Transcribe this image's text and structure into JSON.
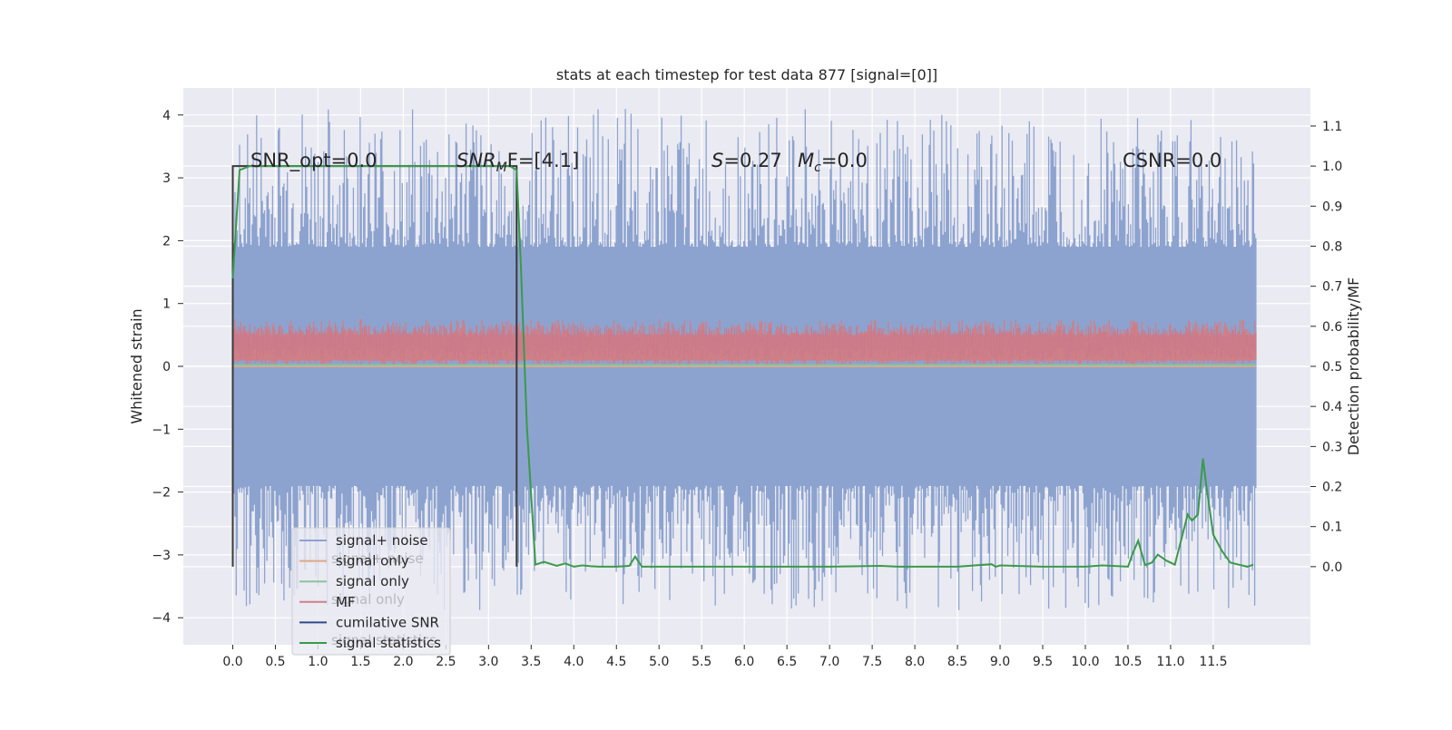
{
  "chart_data": {
    "type": "line",
    "title": "stats at each timestep for test data 877 [signal=[0]]",
    "ylabel_left": "Whitened strain",
    "ylabel_right": "Detection probability/MF",
    "xlim": [
      -0.58,
      12.64
    ],
    "ylim_left": [
      -4.43,
      4.43
    ],
    "ylim_right": [
      -0.195,
      1.195
    ],
    "x_ticks": [
      0.0,
      0.5,
      1.0,
      1.5,
      2.0,
      2.5,
      3.0,
      3.5,
      4.0,
      4.5,
      5.0,
      5.5,
      6.0,
      6.5,
      7.0,
      7.5,
      8.0,
      8.5,
      9.0,
      9.5,
      10.0,
      10.5,
      11.0,
      11.5
    ],
    "x_tick_labels": [
      "0.0",
      "0.5",
      "1.0",
      "1.5",
      "2.0",
      "2.5",
      "3.0",
      "3.5",
      "4.0",
      "4.5",
      "5.0",
      "5.5",
      "6.0",
      "6.5",
      "7.0",
      "7.5",
      "8.0",
      "8.5",
      "9.0",
      "9.5",
      "10.0",
      "10.5",
      "11.0",
      "11.5"
    ],
    "y_left_ticks": [
      -4,
      -3,
      -2,
      -1,
      0,
      1,
      2,
      3,
      4
    ],
    "y_left_tick_labels": [
      "−4",
      "−3",
      "−2",
      "−1",
      "0",
      "1",
      "2",
      "3",
      "4"
    ],
    "y_right_ticks": [
      0.0,
      0.1,
      0.2,
      0.3,
      0.4,
      0.5,
      0.6,
      0.7,
      0.8,
      0.9,
      1.0,
      1.1
    ],
    "y_right_tick_labels": [
      "0.0",
      "0.1",
      "0.2",
      "0.3",
      "0.4",
      "0.5",
      "0.6",
      "0.7",
      "0.8",
      "0.9",
      "1.0",
      "1.1"
    ],
    "grid": true,
    "legend_placement": "lower-left",
    "legend": [
      {
        "label": "signal+ noise",
        "color": "#8da3cf"
      },
      {
        "label": "signal only",
        "color": "#e0a888"
      },
      {
        "label": "signal only",
        "color": "#8cc39a"
      },
      {
        "label": "MF",
        "color": "#cf7f88"
      },
      {
        "label": "cumilative SNR",
        "color": "#2f4a8a"
      },
      {
        "label": "signal statistics",
        "color": "#3a9a4a"
      }
    ],
    "legend_ghost_labels": [
      "signal+ noise",
      "signal only",
      "signal statistics"
    ],
    "annotations": {
      "snr_opt": "SNR_opt=0.0",
      "snr_mf_prefix": "SNR",
      "snr_mf_sub": "M",
      "snr_mf_suffix": "F=[4.1]",
      "s_var": "S",
      "s_val": "=0.27",
      "mc_var": "M",
      "mc_sub": "c",
      "mc_val": "=0.0",
      "csnr": "CSNR=0.0"
    },
    "series": [
      {
        "name": "signal+ noise",
        "axis": "left",
        "style": "dense-noise",
        "x_range": [
          0.0,
          12.0
        ],
        "core_band": [
          -1.9,
          1.9
        ],
        "extreme_max": 4.1,
        "extreme_min": -3.9,
        "color": "#8da3cf"
      },
      {
        "name": "MF",
        "axis": "left",
        "style": "dense-noise",
        "x_range": [
          0.0,
          12.0
        ],
        "core_band": [
          0.1,
          0.5
        ],
        "extreme_max": 0.75,
        "extreme_min": 0.0,
        "color": "#cf7f88"
      },
      {
        "name": "signal only",
        "axis": "left",
        "x": [
          0.0,
          12.0
        ],
        "values": [
          0.0,
          0.0
        ],
        "color": "#e0a888"
      },
      {
        "name": "signal only",
        "axis": "left",
        "x": [
          0.0,
          12.0
        ],
        "values": [
          0.02,
          0.02
        ],
        "color": "#8cc39a"
      },
      {
        "name": "cumilative SNR",
        "axis": "right",
        "x": [
          0.0,
          0.0,
          3.33,
          3.33
        ],
        "values": [
          0.0,
          1.0,
          1.0,
          0.0
        ],
        "color": "#3a3a3a"
      },
      {
        "name": "signal statistics",
        "axis": "right",
        "x": [
          0.0,
          0.08,
          0.2,
          0.5,
          1.0,
          1.5,
          2.0,
          2.5,
          3.0,
          3.25,
          3.33,
          3.38,
          3.45,
          3.55,
          3.65,
          3.8,
          3.9,
          4.0,
          4.1,
          4.2,
          4.3,
          4.5,
          4.65,
          4.72,
          4.8,
          5.0,
          6.0,
          7.0,
          7.6,
          7.8,
          8.0,
          8.5,
          8.9,
          8.95,
          9.0,
          9.5,
          10.0,
          10.2,
          10.5,
          10.55,
          10.62,
          10.7,
          10.78,
          10.85,
          10.95,
          11.05,
          11.2,
          11.25,
          11.32,
          11.38,
          11.42,
          11.5,
          11.6,
          11.7,
          11.8,
          11.9,
          11.97
        ],
        "values": [
          0.72,
          0.99,
          1.0,
          1.0,
          1.0,
          1.0,
          1.0,
          1.0,
          1.0,
          1.0,
          0.99,
          0.75,
          0.35,
          0.005,
          0.012,
          0.002,
          0.008,
          0.0,
          0.003,
          0.001,
          0.0,
          0.0,
          0.002,
          0.025,
          0.0,
          0.0,
          0.0,
          0.0,
          0.002,
          0.0,
          0.0,
          0.0,
          0.006,
          0.0,
          0.003,
          0.0,
          0.0,
          0.003,
          0.0,
          0.03,
          0.065,
          0.004,
          0.01,
          0.03,
          0.015,
          0.005,
          0.13,
          0.115,
          0.13,
          0.27,
          0.2,
          0.08,
          0.04,
          0.01,
          0.005,
          0.0,
          0.005
        ],
        "color": "#3a9a4a"
      }
    ]
  }
}
